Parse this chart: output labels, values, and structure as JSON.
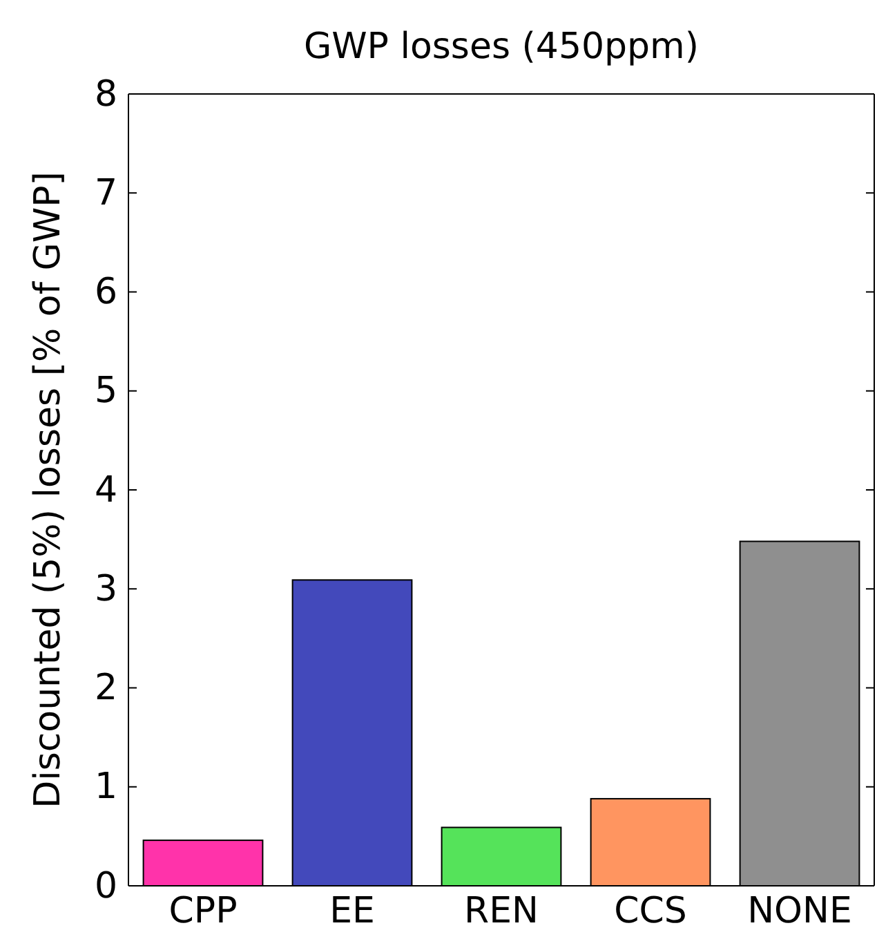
{
  "chart_data": {
    "type": "bar",
    "title": "GWP losses (450ppm)",
    "ylabel": "Discounted (5%) losses [% of GWP]",
    "categories": [
      "CPP",
      "EE",
      "REN",
      "CCS",
      "NONE"
    ],
    "values": [
      0.46,
      3.09,
      0.59,
      0.88,
      3.48
    ],
    "colors": [
      "#ff33aa",
      "#4349bb",
      "#55e35a",
      "#ff9560",
      "#8f8f8f"
    ],
    "ylim": [
      0,
      8
    ],
    "yticks": [
      0,
      1,
      2,
      3,
      4,
      5,
      6,
      7,
      8
    ],
    "grid": false
  }
}
